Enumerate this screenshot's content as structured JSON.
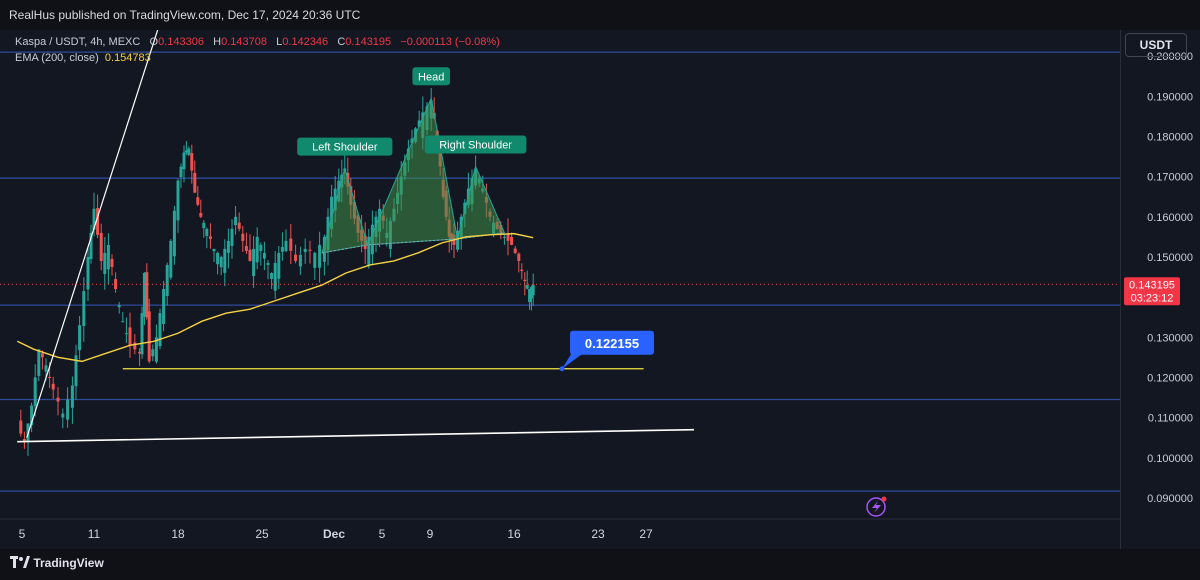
{
  "header": {
    "published": "RealHus published on TradingView.com, Dec 17, 2024 20:36 UTC"
  },
  "legend": {
    "symbol": "Kaspa / USDT, 4h, MEXC",
    "o_label": "O",
    "o": "0.143306",
    "h_label": "H",
    "h": "0.143708",
    "l_label": "L",
    "l": "0.142346",
    "c_label": "C",
    "c": "0.143195",
    "change": "−0.000113 (−0.08%)",
    "ema_label": "EMA (200, close)",
    "ema_value": "0.154783"
  },
  "currency_button": "USDT",
  "footer": {
    "brand": "TradingView"
  },
  "chart_data": {
    "type": "candlestick",
    "title": "Kaspa / USDT, 4h, MEXC",
    "ylim": [
      0.0855,
      0.2065
    ],
    "y_ticks": [
      "0.200000",
      "0.190000",
      "0.180000",
      "0.170000",
      "0.160000",
      "0.150000",
      "0.130000",
      "0.120000",
      "0.110000",
      "0.100000",
      "0.090000"
    ],
    "x_ticks": [
      "5",
      "11",
      "18",
      "25",
      "Dec",
      "5",
      "9",
      "16",
      "23",
      "27"
    ],
    "x_tick_days": [
      5,
      11,
      18,
      25,
      31,
      35,
      39,
      46,
      53,
      57
    ],
    "price_path": [
      [
        4.6,
        0.108
      ],
      [
        5.2,
        0.104
      ],
      [
        5.8,
        0.113
      ],
      [
        6.4,
        0.127
      ],
      [
        7.0,
        0.123
      ],
      [
        7.6,
        0.117
      ],
      [
        8.4,
        0.111
      ],
      [
        9.2,
        0.118
      ],
      [
        9.8,
        0.133
      ],
      [
        10.5,
        0.15
      ],
      [
        11.0,
        0.162
      ],
      [
        11.6,
        0.149
      ],
      [
        12.2,
        0.153
      ],
      [
        12.8,
        0.142
      ],
      [
        13.4,
        0.134
      ],
      [
        14.0,
        0.128
      ],
      [
        14.8,
        0.126
      ],
      [
        15.2,
        0.146
      ],
      [
        15.6,
        0.124
      ],
      [
        16.2,
        0.13
      ],
      [
        16.8,
        0.142
      ],
      [
        17.4,
        0.154
      ],
      [
        18.0,
        0.169
      ],
      [
        18.5,
        0.176
      ],
      [
        18.9,
        0.177
      ],
      [
        19.4,
        0.166
      ],
      [
        19.9,
        0.16
      ],
      [
        20.4,
        0.157
      ],
      [
        21.0,
        0.152
      ],
      [
        21.6,
        0.15
      ],
      [
        22.2,
        0.154
      ],
      [
        22.8,
        0.16
      ],
      [
        23.4,
        0.154
      ],
      [
        24.0,
        0.149
      ],
      [
        24.6,
        0.155
      ],
      [
        25.2,
        0.151
      ],
      [
        25.8,
        0.146
      ],
      [
        26.4,
        0.151
      ],
      [
        27.0,
        0.154
      ],
      [
        27.8,
        0.149
      ],
      [
        28.6,
        0.152
      ],
      [
        29.4,
        0.151
      ],
      [
        30.2,
        0.155
      ],
      [
        30.8,
        0.165
      ],
      [
        31.4,
        0.169
      ],
      [
        31.9,
        0.172
      ],
      [
        32.4,
        0.163
      ],
      [
        33.0,
        0.156
      ],
      [
        33.6,
        0.152
      ],
      [
        34.2,
        0.158
      ],
      [
        34.8,
        0.162
      ],
      [
        35.4,
        0.156
      ],
      [
        36.0,
        0.162
      ],
      [
        36.6,
        0.17
      ],
      [
        37.2,
        0.177
      ],
      [
        37.8,
        0.182
      ],
      [
        38.4,
        0.186
      ],
      [
        39.1,
        0.189
      ],
      [
        39.6,
        0.18
      ],
      [
        40.1,
        0.165
      ],
      [
        40.6,
        0.155
      ],
      [
        41.0,
        0.153
      ],
      [
        41.6,
        0.16
      ],
      [
        42.2,
        0.167
      ],
      [
        42.8,
        0.172
      ],
      [
        43.4,
        0.167
      ],
      [
        44.0,
        0.16
      ],
      [
        44.6,
        0.157
      ],
      [
        45.2,
        0.155
      ],
      [
        45.8,
        0.153
      ],
      [
        46.4,
        0.149
      ],
      [
        46.9,
        0.144
      ],
      [
        47.3,
        0.142
      ],
      [
        47.6,
        0.143
      ]
    ],
    "ema_200": [
      [
        4.6,
        0.129
      ],
      [
        6.0,
        0.127
      ],
      [
        8.0,
        0.125
      ],
      [
        10.0,
        0.124
      ],
      [
        12.0,
        0.126
      ],
      [
        14.0,
        0.128
      ],
      [
        16.0,
        0.129
      ],
      [
        18.0,
        0.131
      ],
      [
        20.0,
        0.134
      ],
      [
        22.0,
        0.136
      ],
      [
        24.0,
        0.137
      ],
      [
        26.0,
        0.139
      ],
      [
        28.0,
        0.141
      ],
      [
        30.0,
        0.143
      ],
      [
        32.0,
        0.146
      ],
      [
        34.0,
        0.148
      ],
      [
        36.0,
        0.149
      ],
      [
        38.0,
        0.151
      ],
      [
        40.0,
        0.1535
      ],
      [
        42.0,
        0.155
      ],
      [
        44.0,
        0.1555
      ],
      [
        46.0,
        0.1558
      ],
      [
        47.6,
        0.1548
      ]
    ],
    "horizontal_levels": [
      0.0917,
      0.1145,
      0.138,
      0.1696,
      0.201
    ],
    "support_line": {
      "from_day": 13.4,
      "to_day": 56.8,
      "price": 0.122155,
      "label": "0.122155"
    },
    "trend_lines": [
      {
        "from": [
          4.6,
          0.104
        ],
        "to": [
          61.0,
          0.107
        ]
      },
      {
        "from": [
          5.4,
          0.105
        ],
        "to": [
          17.7,
          0.2195
        ]
      }
    ],
    "patterns": [
      {
        "label": "Left Shoulder",
        "points": [
          [
            30.0,
            0.151
          ],
          [
            31.9,
            0.172
          ],
          [
            33.8,
            0.153
          ]
        ]
      },
      {
        "label": "Head",
        "points": [
          [
            33.8,
            0.153
          ],
          [
            39.1,
            0.1895
          ],
          [
            41.3,
            0.1545
          ]
        ]
      },
      {
        "label": "Right Shoulder",
        "points": [
          [
            41.3,
            0.1545
          ],
          [
            42.8,
            0.1725
          ],
          [
            45.2,
            0.156
          ]
        ]
      }
    ],
    "last_price": {
      "value": "0.143195",
      "countdown": "03:23:12"
    },
    "colors": {
      "background": "#131722",
      "up": "#26a69a",
      "down": "#ef5350",
      "ema": "#f5d142",
      "levels": "#2e4a9b",
      "support": "#f5e642",
      "trend": "#ffffff",
      "pattern_fill": "#3f8f4a",
      "label_bg": "#10896c",
      "callout": "#2962ff"
    }
  }
}
